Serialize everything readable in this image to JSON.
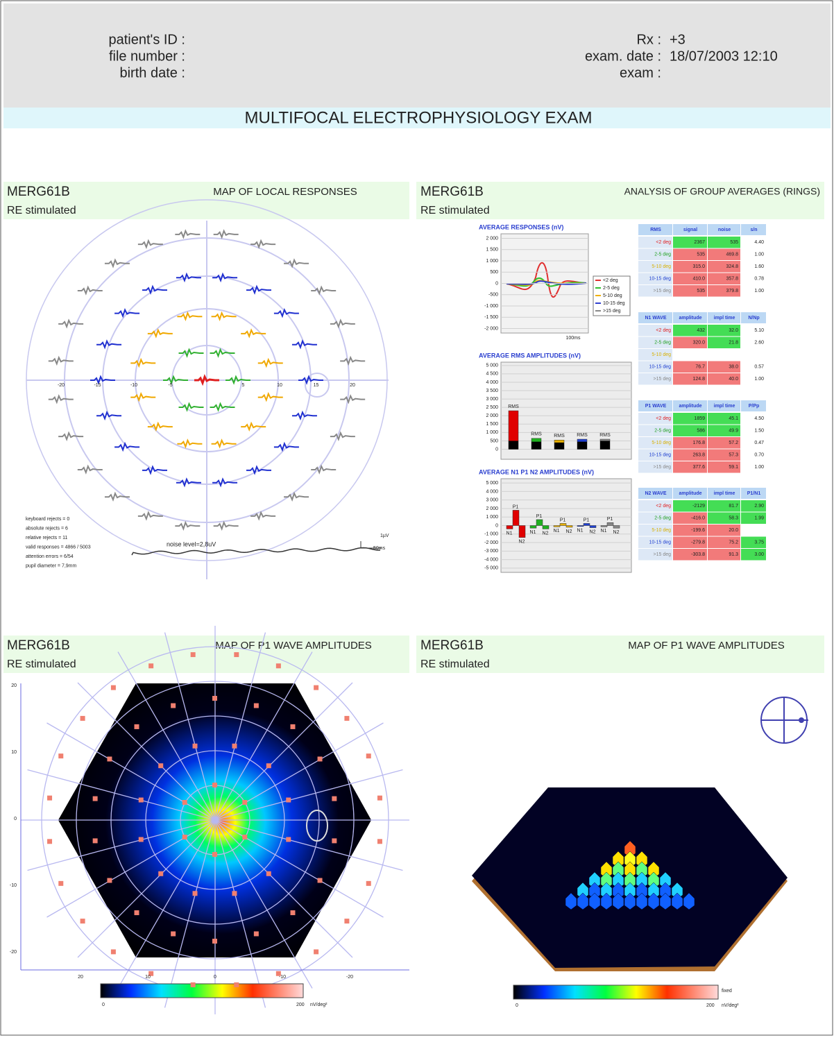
{
  "header": {
    "patient_id_label": "patient's ID :",
    "file_number_label": "file number :",
    "birth_date_label": "birth date :",
    "rx_label": "Rx :",
    "rx_value": "+3",
    "exam_date_label": "exam. date :",
    "exam_date_value": "18/07/2003  12:10",
    "exam_label": "exam :"
  },
  "title": "MULTIFOCAL ELECTROPHYSIOLOGY EXAM",
  "panels": [
    {
      "code": "MERG61B",
      "heading": "MAP OF LOCAL RESPONSES",
      "eye": "RE stimulated"
    },
    {
      "code": "MERG61B",
      "heading": "ANALYSIS OF GROUP AVERAGES (RINGS)",
      "eye": "RE stimulated"
    },
    {
      "code": "MERG61B",
      "heading": "MAP OF P1 WAVE AMPLITUDES",
      "eye": "RE stimulated"
    },
    {
      "code": "MERG61B",
      "heading": "MAP OF P1 WAVE AMPLITUDES",
      "eye": "RE stimulated"
    }
  ],
  "local_map": {
    "ring_ticks": [
      -20,
      -15,
      -10,
      -5,
      5,
      10,
      15,
      20
    ],
    "notes": [
      "keyboard rejects = 0",
      "absolute rejects = 6",
      "relative rejects = 11",
      "valid responses = 4866 / 5003",
      "attention errors = 6/54",
      "pupil diameter = 7,9mm"
    ],
    "noise_label": "noise level=2,8uV",
    "scale_v": "1µV",
    "scale_t": "50ms"
  },
  "avg_responses": {
    "title": "AVERAGE RESPONSES (nV)",
    "ylim": [
      -2200,
      2200
    ],
    "yticks": [
      {
        "value": 2000,
        "label": "2 000"
      },
      {
        "value": 1500,
        "label": "1 500"
      },
      {
        "value": 1000,
        "label": "1 000"
      },
      500,
      0,
      -500,
      {
        "value": -1000,
        "label": "-1 000"
      },
      {
        "value": -1500,
        "label": "-1 500"
      },
      {
        "value": -2000,
        "label": "-2 000"
      }
    ],
    "legend": [
      "<2 deg",
      "2-5 deg",
      "5-10 deg",
      "10-15 deg",
      ">15 deg"
    ],
    "xlabel": "100ms"
  },
  "rms_chart": {
    "title": "AVERAGE RMS AMPLITUDES (nV)",
    "ylim": [
      -600,
      5200
    ],
    "yticks": [
      {
        "value": 5000,
        "label": "5 000"
      },
      {
        "value": 4500,
        "label": "4 500"
      },
      {
        "value": 4000,
        "label": "4 000"
      },
      {
        "value": 3500,
        "label": "3 500"
      },
      {
        "value": 3000,
        "label": "3 000"
      },
      {
        "value": 2500,
        "label": "2 500"
      },
      {
        "value": 2000,
        "label": "2 000"
      },
      {
        "value": 1500,
        "label": "1 500"
      },
      {
        "value": 1000,
        "label": "1 000"
      },
      500,
      0
    ],
    "bar_label": "RMS",
    "signal": [
      2300,
      650,
      550,
      600,
      600
    ],
    "noise": [
      500,
      450,
      400,
      450,
      500
    ]
  },
  "npn_chart": {
    "title": "AVERAGE N1 P1 N2 AMPLITUDES (nV)",
    "ylim": [
      -5500,
      5500
    ],
    "yticks": [
      {
        "value": 5000,
        "label": "5 000"
      },
      {
        "value": 4000,
        "label": "4 000"
      },
      {
        "value": 3000,
        "label": "3 000"
      },
      {
        "value": 2000,
        "label": "2 000"
      },
      {
        "value": 1000,
        "label": "1 000"
      },
      0,
      {
        "value": -1000,
        "label": "-1 000"
      },
      {
        "value": -2000,
        "label": "-2 000"
      },
      {
        "value": -3000,
        "label": "-3 000"
      },
      {
        "value": -4000,
        "label": "-4 000"
      },
      {
        "value": -5000,
        "label": "-5 000"
      }
    ],
    "wave_labels": [
      "N1",
      "P1",
      "N2"
    ],
    "values": [
      [
        -400,
        1800,
        -1400
      ],
      [
        -300,
        700,
        -400
      ],
      [
        -150,
        250,
        -200
      ],
      [
        -100,
        250,
        -250
      ],
      [
        -150,
        350,
        -300
      ]
    ]
  },
  "tables": [
    {
      "header": [
        "RMS",
        "signal",
        "noise",
        "s/n"
      ],
      "rows": [
        [
          "<2 deg",
          "2367",
          "535",
          "4.40"
        ],
        [
          "2-5 deg",
          "535",
          "469.8",
          "1.00"
        ],
        [
          "5-10 deg",
          "315.0",
          "324.8",
          "1.60"
        ],
        [
          "10-15 deg",
          "410.0",
          "357.8",
          "0.78"
        ],
        [
          ">15 deg",
          "535",
          "379.8",
          "1.00"
        ]
      ]
    },
    {
      "header": [
        "N1 WAVE",
        "amplitude",
        "impl time",
        "N/Np"
      ],
      "rows": [
        [
          "<2 deg",
          "432",
          "32.0",
          "5.10"
        ],
        [
          "2-5 deg",
          "320.0",
          "21.8",
          "2.60"
        ],
        [
          "5-10 deg",
          null,
          null,
          null
        ],
        [
          "10-15 deg",
          "76.7",
          "38.0",
          "0.57"
        ],
        [
          ">15 deg",
          "124.8",
          "40.0",
          "1.00"
        ]
      ]
    },
    {
      "header": [
        "P1 WAVE",
        "amplitude",
        "impl time",
        "P/Pp"
      ],
      "rows": [
        [
          "<2 deg",
          "1859",
          "45.1",
          "4.50"
        ],
        [
          "2-5 deg",
          "586",
          "49.9",
          "1.50"
        ],
        [
          "5-10 deg",
          "176.8",
          "57.2",
          "0.47"
        ],
        [
          "10-15 deg",
          "263.8",
          "57.3",
          "0.70"
        ],
        [
          ">15 deg",
          "377.6",
          "59.1",
          "1.00"
        ]
      ]
    },
    {
      "header": [
        "N2 WAVE",
        "amplitude",
        "impl time",
        "P1/N1"
      ],
      "rows": [
        [
          "<2 deg",
          "-2129",
          "81.7",
          "2.90"
        ],
        [
          "2-5 deg",
          "-416.0",
          "58.3",
          "1.99"
        ],
        [
          "5-10 deg",
          "-199.6",
          "20.0",
          null
        ],
        [
          "10-15 deg",
          "-279.8",
          "75.2",
          "3.75"
        ],
        [
          ">15 deg",
          "-303.8",
          "91.3",
          "3.00"
        ]
      ]
    }
  ],
  "p1_map": {
    "ticks": [
      20,
      10,
      0,
      -10,
      -20
    ],
    "scale_min": "0",
    "scale_max": "200",
    "unit": "nV/deg²"
  },
  "p1_3d": {
    "scale_min": "0",
    "scale_max": "200",
    "unit": "nV/deg²",
    "fixed": "fixed"
  }
}
